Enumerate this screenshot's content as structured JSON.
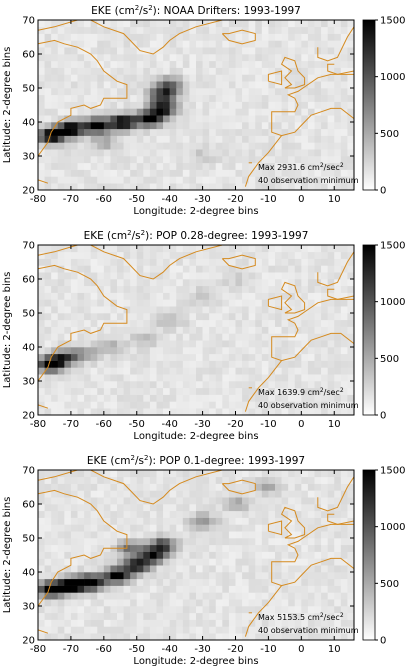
{
  "panels": [
    {
      "title_prefix": "EKE (cm",
      "title_sup1": "2",
      "title_mid": "/s",
      "title_sup2": "2",
      "title_suffix": "): NOAA Drifters: 1993-1997",
      "annotation_max": "Max 2931.6 cm",
      "annotation_sup1": "2",
      "annotation_mid": "/sec",
      "annotation_sup2": "2",
      "annotation_obs": "40 observation minimum"
    },
    {
      "title_prefix": "EKE (cm",
      "title_sup1": "2",
      "title_mid": "/s",
      "title_sup2": "2",
      "title_suffix": "): POP 0.28-degree: 1993-1997",
      "annotation_max": "Max 1639.9 cm",
      "annotation_sup1": "2",
      "annotation_mid": "/sec",
      "annotation_sup2": "2",
      "annotation_obs": "40 observation minimum"
    },
    {
      "title_prefix": "EKE (cm",
      "title_sup1": "2",
      "title_mid": "/s",
      "title_sup2": "2",
      "title_suffix": "): POP 0.1-degree: 1993-1997",
      "annotation_max": "Max 5153.5 cm",
      "annotation_sup1": "2",
      "annotation_mid": "/sec",
      "annotation_sup2": "2",
      "annotation_obs": "40 observation minimum"
    }
  ],
  "chart_data": [
    {
      "type": "heatmap",
      "xlabel": "Longitude: 2-degree bins",
      "ylabel": "Latitude: 2-degree bins",
      "xlim": [
        -80,
        16
      ],
      "ylim": [
        20,
        70
      ],
      "xticks": [
        -80,
        -70,
        -60,
        -50,
        -40,
        -30,
        -20,
        -10,
        0,
        10
      ],
      "yticks": [
        20,
        30,
        40,
        50,
        60,
        70
      ],
      "colorbar_ticks": [
        0,
        500,
        1000,
        1500
      ],
      "colorbar_range": [
        0,
        1500
      ],
      "max_value": 2931.6,
      "colormap": "white-to-black",
      "coastline_color": "#d58a1e",
      "hotspots": [
        {
          "lon": -76,
          "lat": 36,
          "value": 1500
        },
        {
          "lon": -70,
          "lat": 38,
          "value": 1500
        },
        {
          "lon": -62,
          "lat": 39,
          "value": 1500
        },
        {
          "lon": -54,
          "lat": 40,
          "value": 1500
        },
        {
          "lon": -46,
          "lat": 41,
          "value": 1400
        },
        {
          "lon": -42,
          "lat": 44,
          "value": 1300
        },
        {
          "lon": -42,
          "lat": 48,
          "value": 1100
        },
        {
          "lon": -40,
          "lat": 51,
          "value": 800
        },
        {
          "lon": -60,
          "lat": 34,
          "value": 400
        },
        {
          "lon": -30,
          "lat": 30,
          "value": 200
        }
      ]
    },
    {
      "type": "heatmap",
      "xlabel": "Longitude: 2-degree bins",
      "ylabel": "Latitude: 2-degree bins",
      "xlim": [
        -80,
        16
      ],
      "ylim": [
        20,
        70
      ],
      "xticks": [
        -80,
        -70,
        -60,
        -50,
        -40,
        -30,
        -20,
        -10,
        0,
        10
      ],
      "yticks": [
        20,
        30,
        40,
        50,
        60,
        70
      ],
      "colorbar_ticks": [
        0,
        500,
        1000,
        1500
      ],
      "colorbar_range": [
        0,
        1500
      ],
      "max_value": 1639.9,
      "colormap": "white-to-black",
      "coastline_color": "#d58a1e",
      "hotspots": [
        {
          "lon": -76,
          "lat": 35,
          "value": 1500
        },
        {
          "lon": -72,
          "lat": 37,
          "value": 900
        },
        {
          "lon": -66,
          "lat": 38,
          "value": 500
        },
        {
          "lon": -58,
          "lat": 40,
          "value": 350
        },
        {
          "lon": -48,
          "lat": 42,
          "value": 250
        },
        {
          "lon": -40,
          "lat": 48,
          "value": 300
        },
        {
          "lon": -30,
          "lat": 55,
          "value": 200
        },
        {
          "lon": -20,
          "lat": 60,
          "value": 150
        }
      ]
    },
    {
      "type": "heatmap",
      "xlabel": "Longitude: 2-degree bins",
      "ylabel": "Latitude: 2-degree bins",
      "xlim": [
        -80,
        16
      ],
      "ylim": [
        20,
        70
      ],
      "xticks": [
        -80,
        -70,
        -60,
        -50,
        -40,
        -30,
        -20,
        -10,
        0,
        10
      ],
      "yticks": [
        20,
        30,
        40,
        50,
        60,
        70
      ],
      "colorbar_ticks": [
        0,
        500,
        1000,
        1500
      ],
      "colorbar_range": [
        0,
        1500
      ],
      "max_value": 5153.5,
      "colormap": "white-to-black",
      "coastline_color": "#d58a1e",
      "hotspots": [
        {
          "lon": -76,
          "lat": 35,
          "value": 1500
        },
        {
          "lon": -70,
          "lat": 36,
          "value": 1500
        },
        {
          "lon": -64,
          "lat": 37,
          "value": 1500
        },
        {
          "lon": -56,
          "lat": 39,
          "value": 1400
        },
        {
          "lon": -50,
          "lat": 42,
          "value": 1300
        },
        {
          "lon": -45,
          "lat": 45,
          "value": 1200
        },
        {
          "lon": -42,
          "lat": 48,
          "value": 1000
        },
        {
          "lon": -52,
          "lat": 47,
          "value": 700
        },
        {
          "lon": -30,
          "lat": 55,
          "value": 500
        },
        {
          "lon": -20,
          "lat": 60,
          "value": 400
        },
        {
          "lon": -10,
          "lat": 65,
          "value": 350
        }
      ]
    }
  ]
}
